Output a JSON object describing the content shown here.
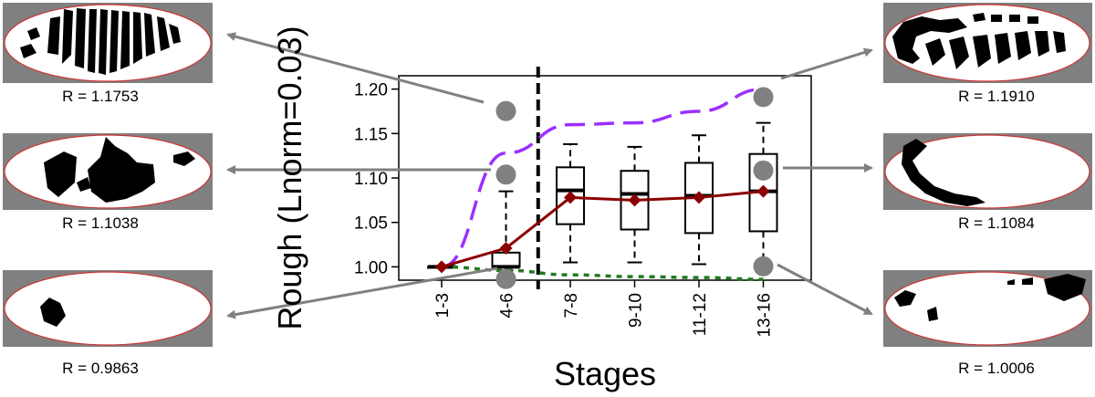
{
  "chart_data": {
    "type": "box",
    "xlabel": "Stages",
    "ylabel": "Rough (Lnorm=0.03)",
    "categories": [
      "1-3",
      "4-6",
      "7-8",
      "9-10",
      "11-12",
      "13-16"
    ],
    "ylim": [
      0.985,
      1.215
    ],
    "yticks": [
      "1.00",
      "1.05",
      "1.10",
      "1.15",
      "1.20"
    ],
    "ytick_values": [
      1.0,
      1.05,
      1.1,
      1.15,
      1.2
    ],
    "boxes": [
      {
        "category": "1-3",
        "whisker_low": 1.0,
        "q1": 1.0,
        "median": 1.0,
        "q3": 1.0,
        "whisker_high": 1.0
      },
      {
        "category": "4-6",
        "whisker_low": 0.996,
        "q1": 1.0,
        "median": 1.0,
        "q3": 1.016,
        "whisker_high": 1.085
      },
      {
        "category": "7-8",
        "whisker_low": 1.005,
        "q1": 1.048,
        "median": 1.086,
        "q3": 1.112,
        "whisker_high": 1.138
      },
      {
        "category": "9-10",
        "whisker_low": 1.005,
        "q1": 1.042,
        "median": 1.082,
        "q3": 1.108,
        "whisker_high": 1.135
      },
      {
        "category": "11-12",
        "whisker_low": 1.003,
        "q1": 1.038,
        "median": 1.08,
        "q3": 1.117,
        "whisker_high": 1.148
      },
      {
        "category": "13-16",
        "whisker_low": 1.0,
        "q1": 1.04,
        "median": 1.085,
        "q3": 1.127,
        "whisker_high": 1.162
      }
    ],
    "mean_line": {
      "color": "#8b0000",
      "values": [
        1.0,
        1.021,
        1.078,
        1.075,
        1.078,
        1.085
      ]
    },
    "upper_line": {
      "color": "#9b30ff",
      "values": [
        1.0,
        1.128,
        1.16,
        1.162,
        1.175,
        1.2
      ]
    },
    "lower_line": {
      "color": "#1e7b1e",
      "values": [
        1.0,
        0.996,
        0.991,
        0.989,
        0.988,
        0.986
      ]
    },
    "stage_divider_after": "4-6",
    "highlight_points": [
      {
        "category": "4-6",
        "value": 1.1753
      },
      {
        "category": "4-6",
        "value": 1.1038
      },
      {
        "category": "4-6",
        "value": 0.9863
      },
      {
        "category": "13-16",
        "value": 1.191
      },
      {
        "category": "13-16",
        "value": 1.1084
      },
      {
        "category": "13-16",
        "value": 1.0006
      }
    ]
  },
  "thumbnails": [
    {
      "label": "R = 1.1753"
    },
    {
      "label": "R = 1.1038"
    },
    {
      "label": "R = 0.9863"
    },
    {
      "label": "R = 1.1910"
    },
    {
      "label": "R = 1.1084"
    },
    {
      "label": "R = 1.0006"
    }
  ],
  "colors": {
    "point": "#808080",
    "arrow": "#808080",
    "thumb_bg": "#808080",
    "embryo_edge": "#cc3333"
  }
}
